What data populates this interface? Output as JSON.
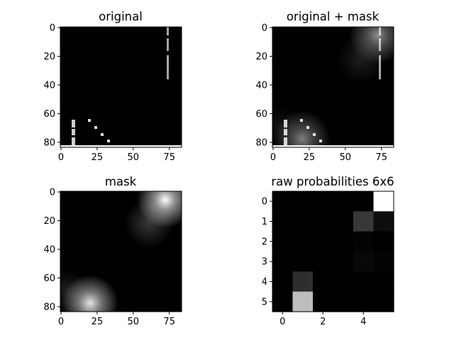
{
  "chart_data": [
    {
      "type": "heatmap",
      "title": "original",
      "xlim": [
        -0.5,
        83.5
      ],
      "ylim": [
        83.5,
        -0.5
      ],
      "xticks": [
        0,
        25,
        50,
        75
      ],
      "yticks": [
        0,
        20,
        40,
        60,
        80
      ],
      "content": "black frame, dashed vertical line near x=74 for y 0-35, bright column near x=9 for y 64-83, diagonal dotted line from (20,64) to (33,78), bright bottom row at y 83"
    },
    {
      "type": "heatmap",
      "title": "original + mask",
      "xlim": [
        -0.5,
        83.5
      ],
      "ylim": [
        83.5,
        -0.5
      ],
      "xticks": [
        0,
        25,
        50,
        75
      ],
      "yticks": [
        0,
        20,
        40,
        60,
        80
      ],
      "content": "original frame blended with mask; glow top-right and bottom-left"
    },
    {
      "type": "heatmap",
      "title": "mask",
      "xlim": [
        -0.5,
        83.5
      ],
      "ylim": [
        83.5,
        -0.5
      ],
      "xticks": [
        0,
        25,
        50,
        75
      ],
      "yticks": [
        0,
        20,
        40,
        60,
        80
      ],
      "blobs": [
        {
          "cx": 77,
          "cy": 7,
          "sigma": 10,
          "peak": 1.0
        },
        {
          "cx": 62,
          "cy": 20,
          "sigma": 9,
          "peak": 0.2
        },
        {
          "cx": 20,
          "cy": 78,
          "sigma": 9,
          "peak": 0.85
        },
        {
          "cx": 8,
          "cy": 62,
          "sigma": 7,
          "peak": 0.1
        }
      ]
    },
    {
      "type": "heatmap",
      "title": "raw probabilities 6x6",
      "xlim": [
        -0.5,
        5.5
      ],
      "ylim": [
        5.5,
        -0.5
      ],
      "xticks": [
        0,
        2,
        4
      ],
      "yticks": [
        0,
        1,
        2,
        3,
        4,
        5
      ],
      "values": [
        [
          0,
          0,
          0,
          0,
          0,
          1.0
        ],
        [
          0,
          0,
          0,
          0,
          0.22,
          0.05
        ],
        [
          0,
          0,
          0,
          0,
          0.01,
          0
        ],
        [
          0,
          0,
          0,
          0,
          0.03,
          0.01
        ],
        [
          0,
          0.18,
          0,
          0,
          0,
          0
        ],
        [
          0,
          0.74,
          0,
          0,
          0,
          0
        ]
      ]
    }
  ]
}
